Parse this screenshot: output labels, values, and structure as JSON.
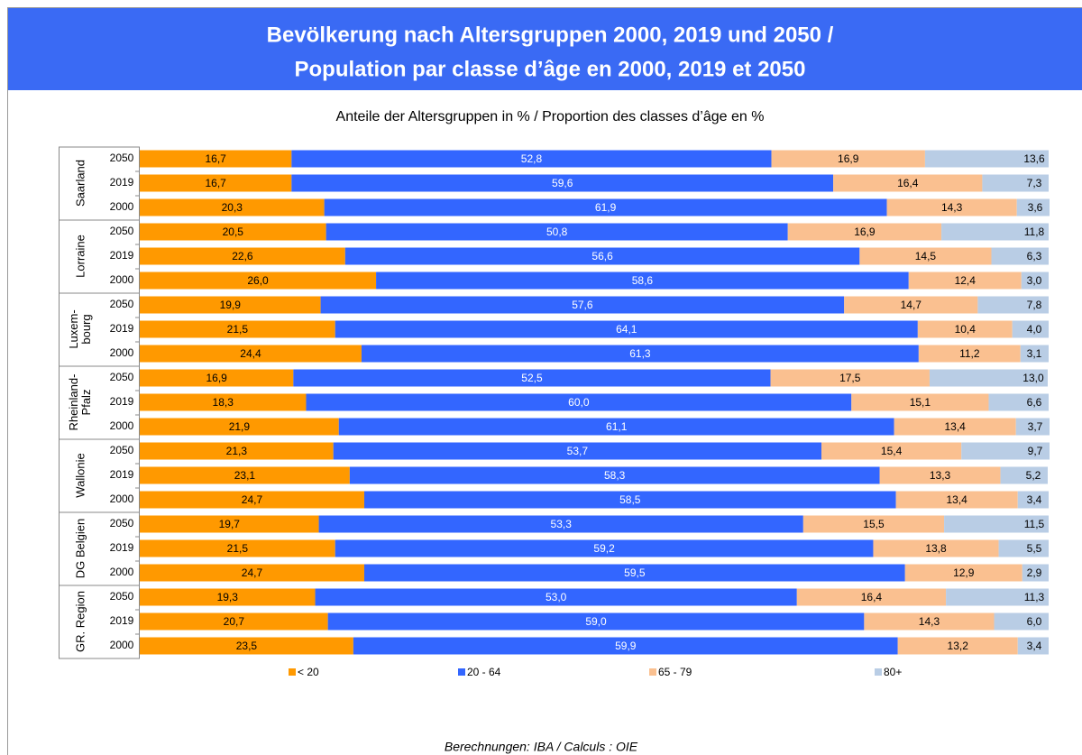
{
  "chart_data": {
    "type": "stacked_bar_horizontal",
    "title": [
      "Bevölkerung nach Altersgruppen 2000, 2019 und 2050 /",
      "Population par classe d’âge en 2000, 2019 et 2050"
    ],
    "subtitle": "Anteile der Altersgruppen in % / Proportion des classes d’âge en %",
    "source": "Berechnungen: IBA / Calculs : OIE",
    "groups": [
      "Saarland",
      "Lorraine",
      "Luxem-\nbourg",
      "Rheinland-\nPfalz",
      "Wallonie",
      "DG Belgien",
      "GR. Region"
    ],
    "categories": [
      "2050",
      "2019",
      "2000",
      "2050",
      "2019",
      "2000",
      "2050",
      "2019",
      "2000",
      "2050",
      "2019",
      "2000",
      "2050",
      "2019",
      "2000",
      "2050",
      "2019",
      "2000",
      "2050",
      "2019",
      "2000"
    ],
    "xlim": [
      0,
      100
    ],
    "series": [
      {
        "name": "< 20",
        "color": "#ff9900",
        "label_color": "#000000",
        "values": [
          16.7,
          16.7,
          20.3,
          20.5,
          22.6,
          26.0,
          19.9,
          21.5,
          24.4,
          16.9,
          18.3,
          21.9,
          21.3,
          23.1,
          24.7,
          19.7,
          21.5,
          24.7,
          19.3,
          20.7,
          23.5
        ],
        "value_labels": [
          "16,7",
          "16,7",
          "20,3",
          "20,5",
          "22,6",
          "26,0",
          "19,9",
          "21,5",
          "24,4",
          "16,9",
          "18,3",
          "21,9",
          "21,3",
          "23,1",
          "24,7",
          "19,7",
          "21,5",
          "24,7",
          "19,3",
          "20,7",
          "23,5"
        ]
      },
      {
        "name": "20 - 64",
        "color": "#3366ff",
        "label_color": "#ffffff",
        "values": [
          52.8,
          59.6,
          61.9,
          50.8,
          56.6,
          58.6,
          57.6,
          64.1,
          61.3,
          52.5,
          60.0,
          61.1,
          53.7,
          58.3,
          58.5,
          53.3,
          59.2,
          59.5,
          53.0,
          59.0,
          59.9
        ],
        "value_labels": [
          "52,8",
          "59,6",
          "61,9",
          "50,8",
          "56,6",
          "58,6",
          "57,6",
          "64,1",
          "61,3",
          "52,5",
          "60,0",
          "61,1",
          "53,7",
          "58,3",
          "58,5",
          "53,3",
          "59,2",
          "59,5",
          "53,0",
          "59,0",
          "59,9"
        ]
      },
      {
        "name": "65 - 79",
        "color": "#fac090",
        "label_color": "#000000",
        "values": [
          16.9,
          16.4,
          14.3,
          16.9,
          14.5,
          12.4,
          14.7,
          10.4,
          11.2,
          17.5,
          15.1,
          13.4,
          15.4,
          13.3,
          13.4,
          15.5,
          13.8,
          12.9,
          16.4,
          14.3,
          13.2
        ],
        "value_labels": [
          "16,9",
          "16,4",
          "14,3",
          "16,9",
          "14,5",
          "12,4",
          "14,7",
          "10,4",
          "11,2",
          "17,5",
          "15,1",
          "13,4",
          "15,4",
          "13,3",
          "13,4",
          "15,5",
          "13,8",
          "12,9",
          "16,4",
          "14,3",
          "13,2"
        ]
      },
      {
        "name": "80+",
        "color": "#b9cde5",
        "label_color": "#000000",
        "values": [
          13.6,
          7.3,
          3.6,
          11.8,
          6.3,
          3.0,
          7.8,
          4.0,
          3.1,
          13.0,
          6.6,
          3.7,
          9.7,
          5.2,
          3.4,
          11.5,
          5.5,
          2.9,
          11.3,
          6.0,
          3.4
        ],
        "value_labels": [
          "13,6",
          "7,3",
          "3,6",
          "11,8",
          "6,3",
          "3,0",
          "7,8",
          "4,0",
          "3,1",
          "13,0",
          "6,6",
          "3,7",
          "9,7",
          "5,2",
          "3,4",
          "11,5",
          "5,5",
          "2,9",
          "11,3",
          "6,0",
          "3,4"
        ]
      }
    ]
  }
}
